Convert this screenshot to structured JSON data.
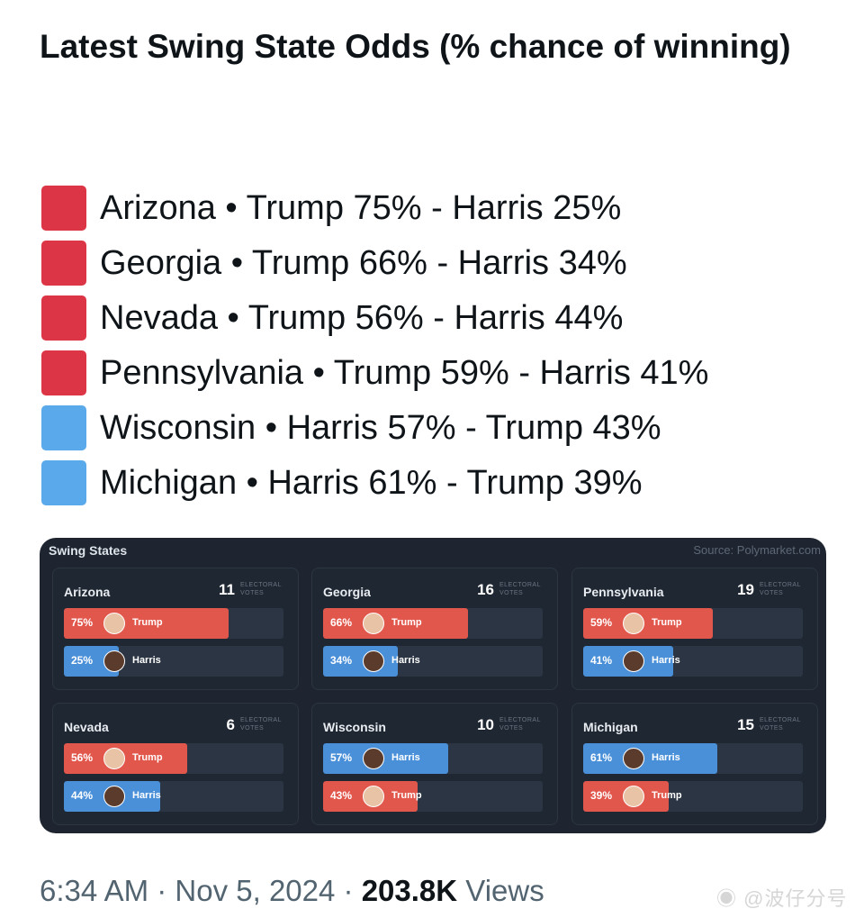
{
  "title": "Latest Swing State Odds (% chance of winning)",
  "colors": {
    "trump": "#dc3545",
    "harris": "#5aa9ea",
    "bar_trump": "#e2574c",
    "bar_harris": "#4a90d9",
    "panel_bg": "#1e2530"
  },
  "states": [
    {
      "text": "Arizona • Trump 75% - Harris 25%",
      "color": "trump"
    },
    {
      "text": "Georgia • Trump 66% - Harris 34%",
      "color": "trump"
    },
    {
      "text": "Nevada • Trump 56% - Harris 44%",
      "color": "trump"
    },
    {
      "text": "Pennsylvania • Trump 59% - Harris 41%",
      "color": "trump"
    },
    {
      "text": "Wisconsin • Harris 57% - Trump 43%",
      "color": "harris"
    },
    {
      "text": "Michigan • Harris 61% - Trump 39%",
      "color": "harris"
    }
  ],
  "image": {
    "title": "Swing States",
    "source": "Source: Polymarket.com",
    "ev_label": "ELECTORAL VOTES",
    "cards": [
      {
        "state": "Arizona",
        "votes": "11",
        "rows": [
          {
            "pct": 75,
            "name": "Trump"
          },
          {
            "pct": 25,
            "name": "Harris"
          }
        ]
      },
      {
        "state": "Georgia",
        "votes": "16",
        "rows": [
          {
            "pct": 66,
            "name": "Trump"
          },
          {
            "pct": 34,
            "name": "Harris"
          }
        ]
      },
      {
        "state": "Pennsylvania",
        "votes": "19",
        "rows": [
          {
            "pct": 59,
            "name": "Trump"
          },
          {
            "pct": 41,
            "name": "Harris"
          }
        ]
      },
      {
        "state": "Nevada",
        "votes": "6",
        "rows": [
          {
            "pct": 56,
            "name": "Trump"
          },
          {
            "pct": 44,
            "name": "Harris"
          }
        ]
      },
      {
        "state": "Wisconsin",
        "votes": "10",
        "rows": [
          {
            "pct": 57,
            "name": "Harris"
          },
          {
            "pct": 43,
            "name": "Trump"
          }
        ]
      },
      {
        "state": "Michigan",
        "votes": "15",
        "rows": [
          {
            "pct": 61,
            "name": "Harris"
          },
          {
            "pct": 39,
            "name": "Trump"
          }
        ]
      }
    ]
  },
  "footer": {
    "time": "6:34 AM",
    "date": "Nov 5, 2024",
    "views": "203.8K",
    "views_label": "Views"
  },
  "watermark": "@波仔分号"
}
